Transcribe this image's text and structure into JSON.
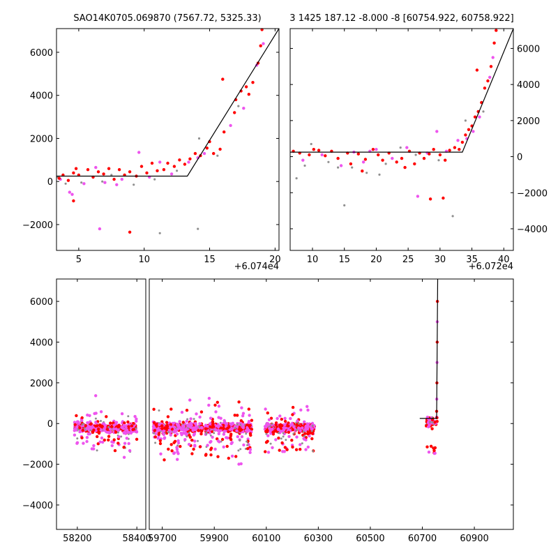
{
  "chart_data": [
    {
      "id": "top-left",
      "type": "scatter",
      "title": "SAO14K0705.069870 (7567.72, 5325.33)",
      "x_offset_label": "+6.074e4",
      "xlim": [
        3.3,
        20.3
      ],
      "ylim": [
        -3200,
        7100
      ],
      "xticks": [
        5,
        10,
        15,
        20
      ],
      "yticks": [
        -2000,
        0,
        2000,
        4000,
        6000
      ],
      "model_line": [
        [
          3.3,
          250
        ],
        [
          13.3,
          250
        ],
        [
          20.3,
          7100
        ]
      ],
      "series": [
        {
          "name": "red",
          "color": "#ff0000",
          "points": [
            [
              3.5,
              150
            ],
            [
              3.8,
              300
            ],
            [
              4.2,
              50
            ],
            [
              4.6,
              400
            ],
            [
              4.8,
              600
            ],
            [
              5.0,
              300
            ],
            [
              5.7,
              550
            ],
            [
              6.1,
              200
            ],
            [
              6.5,
              450
            ],
            [
              6.9,
              350
            ],
            [
              7.3,
              600
            ],
            [
              7.7,
              100
            ],
            [
              8.1,
              550
            ],
            [
              8.5,
              300
            ],
            [
              8.9,
              450
            ],
            [
              9.4,
              250
            ],
            [
              9.8,
              700
            ],
            [
              10.2,
              400
            ],
            [
              10.6,
              850
            ],
            [
              11.0,
              500
            ],
            [
              11.5,
              550
            ],
            [
              11.8,
              850
            ],
            [
              12.3,
              700
            ],
            [
              12.7,
              1000
            ],
            [
              13.1,
              800
            ],
            [
              13.5,
              1050
            ],
            [
              13.9,
              1300
            ],
            [
              14.3,
              1200
            ],
            [
              14.8,
              1550
            ],
            [
              15.0,
              1850
            ],
            [
              15.3,
              1300
            ],
            [
              15.8,
              1500
            ],
            [
              16.1,
              2300
            ],
            [
              16.9,
              3200
            ],
            [
              17.0,
              3800
            ],
            [
              17.4,
              4200
            ],
            [
              17.8,
              4400
            ],
            [
              18.0,
              4050
            ],
            [
              18.3,
              4600
            ],
            [
              18.7,
              5500
            ],
            [
              18.9,
              6300
            ],
            [
              19.0,
              7050
            ],
            [
              16.0,
              4750
            ],
            [
              8.9,
              -2350
            ],
            [
              4.6,
              -900
            ]
          ]
        },
        {
          "name": "magenta",
          "color": "#ee55ee",
          "points": [
            [
              3.6,
              100
            ],
            [
              4.3,
              -500
            ],
            [
              4.5,
              -600
            ],
            [
              5.4,
              -100
            ],
            [
              6.3,
              650
            ],
            [
              6.6,
              -2200
            ],
            [
              7.0,
              -50
            ],
            [
              7.9,
              -150
            ],
            [
              8.3,
              100
            ],
            [
              9.6,
              1350
            ],
            [
              10.4,
              200
            ],
            [
              11.2,
              900
            ],
            [
              12.1,
              350
            ],
            [
              13.4,
              900
            ],
            [
              14.1,
              1100
            ],
            [
              14.6,
              1300
            ],
            [
              16.6,
              2600
            ],
            [
              18.6,
              5400
            ],
            [
              19.1,
              6400
            ],
            [
              17.6,
              3400
            ]
          ]
        },
        {
          "name": "gray",
          "color": "#909090",
          "points": [
            [
              3.4,
              200
            ],
            [
              4.0,
              -100
            ],
            [
              5.2,
              -50
            ],
            [
              6.8,
              0
            ],
            [
              7.5,
              300
            ],
            [
              9.2,
              -150
            ],
            [
              10.8,
              100
            ],
            [
              11.2,
              -2400
            ],
            [
              12.5,
              500
            ],
            [
              14.1,
              -2200
            ],
            [
              14.2,
              2000
            ],
            [
              15.6,
              1200
            ],
            [
              17.2,
              3500
            ]
          ]
        }
      ]
    },
    {
      "id": "top-right",
      "type": "scatter",
      "title": "3 1425 187.12 -8.000 -8 [60754.922, 60758.922]",
      "x_offset_label": "+6.072e4",
      "xlim": [
        6.5,
        41.5
      ],
      "ylim": [
        -5200,
        7100
      ],
      "xticks": [
        10,
        15,
        20,
        25,
        30,
        35,
        40
      ],
      "yticks": [
        -4000,
        -2000,
        0,
        2000,
        4000,
        6000
      ],
      "model_line": [
        [
          6.5,
          250
        ],
        [
          33.5,
          250
        ],
        [
          41.5,
          7100
        ]
      ],
      "series": [
        {
          "name": "red",
          "color": "#ff0000",
          "points": [
            [
              7.0,
              300
            ],
            [
              8.0,
              200
            ],
            [
              9.5,
              100
            ],
            [
              10.2,
              400
            ],
            [
              11.0,
              350
            ],
            [
              12.0,
              50
            ],
            [
              13.0,
              300
            ],
            [
              14.0,
              -100
            ],
            [
              15.5,
              200
            ],
            [
              16.0,
              -400
            ],
            [
              17.2,
              150
            ],
            [
              18.3,
              -150
            ],
            [
              19.5,
              400
            ],
            [
              20.3,
              100
            ],
            [
              21.0,
              -200
            ],
            [
              22.0,
              200
            ],
            [
              23.2,
              -300
            ],
            [
              24.0,
              -100
            ],
            [
              25.2,
              300
            ],
            [
              26.0,
              -400
            ],
            [
              26.8,
              200
            ],
            [
              27.5,
              -100
            ],
            [
              28.3,
              150
            ],
            [
              29.0,
              400
            ],
            [
              30.0,
              100
            ],
            [
              30.8,
              -200
            ],
            [
              31.5,
              350
            ],
            [
              32.3,
              500
            ],
            [
              33.0,
              400
            ],
            [
              33.5,
              800
            ],
            [
              34.0,
              1200
            ],
            [
              34.5,
              1500
            ],
            [
              35.0,
              1700
            ],
            [
              35.5,
              2200
            ],
            [
              36.0,
              2500
            ],
            [
              36.5,
              3000
            ],
            [
              37.0,
              3800
            ],
            [
              37.5,
              4200
            ],
            [
              38.0,
              5000
            ],
            [
              38.5,
              6300
            ],
            [
              38.8,
              7000
            ],
            [
              35.8,
              4800
            ],
            [
              30.5,
              -2300
            ],
            [
              28.5,
              -2350
            ],
            [
              24.5,
              -600
            ],
            [
              17.8,
              -800
            ]
          ]
        },
        {
          "name": "magenta",
          "color": "#ee55ee",
          "points": [
            [
              8.5,
              -200
            ],
            [
              11.5,
              100
            ],
            [
              14.5,
              -500
            ],
            [
              16.5,
              250
            ],
            [
              18.0,
              -300
            ],
            [
              20.0,
              400
            ],
            [
              22.5,
              -100
            ],
            [
              24.8,
              500
            ],
            [
              26.5,
              -2200
            ],
            [
              28.0,
              200
            ],
            [
              29.5,
              1400
            ],
            [
              31.0,
              300
            ],
            [
              32.8,
              900
            ],
            [
              34.2,
              1000
            ],
            [
              36.2,
              2200
            ],
            [
              37.8,
              4400
            ],
            [
              38.3,
              5500
            ],
            [
              35.2,
              1400
            ],
            [
              19.0,
              300
            ]
          ]
        },
        {
          "name": "gray",
          "color": "#909090",
          "points": [
            [
              7.5,
              -1200
            ],
            [
              8.8,
              -500
            ],
            [
              9.8,
              700
            ],
            [
              12.5,
              -300
            ],
            [
              15.0,
              -2700
            ],
            [
              16.2,
              -600
            ],
            [
              18.5,
              -900
            ],
            [
              21.5,
              -400
            ],
            [
              23.8,
              500
            ],
            [
              26.2,
              100
            ],
            [
              29.8,
              -200
            ],
            [
              32.0,
              -3300
            ],
            [
              34.0,
              2000
            ],
            [
              36.8,
              2500
            ],
            [
              20.5,
              -1000
            ],
            [
              14.0,
              -600
            ]
          ]
        }
      ]
    },
    {
      "id": "bottom",
      "type": "scatter",
      "ylim": [
        -5200,
        7100
      ],
      "yticks": [
        -4000,
        -2000,
        0,
        2000,
        4000,
        6000
      ],
      "xticks": [
        58200,
        58400,
        59700,
        59900,
        60100,
        60300,
        60500,
        60700,
        60900
      ],
      "segments": [
        {
          "xlim": [
            58130,
            58430
          ],
          "xticks": [
            58200,
            58400
          ],
          "clusters": [
            [
              58190,
              58400
            ]
          ]
        },
        {
          "xlim": [
            59650,
            61050
          ],
          "xticks": [
            59700,
            59900,
            60100,
            60300,
            60500,
            60700,
            60900
          ],
          "clusters": [
            [
              59665,
              59855
            ],
            [
              59865,
              60045
            ],
            [
              60095,
              60285
            ],
            [
              60712,
              60757
            ]
          ]
        }
      ],
      "model_line": [
        [
          60690,
          250
        ],
        [
          60754.9,
          250
        ],
        [
          60758.9,
          7100
        ]
      ],
      "series_colors": {
        "red": "#ff0000",
        "magenta": "#ee55ee",
        "gray": "#909090"
      }
    }
  ]
}
